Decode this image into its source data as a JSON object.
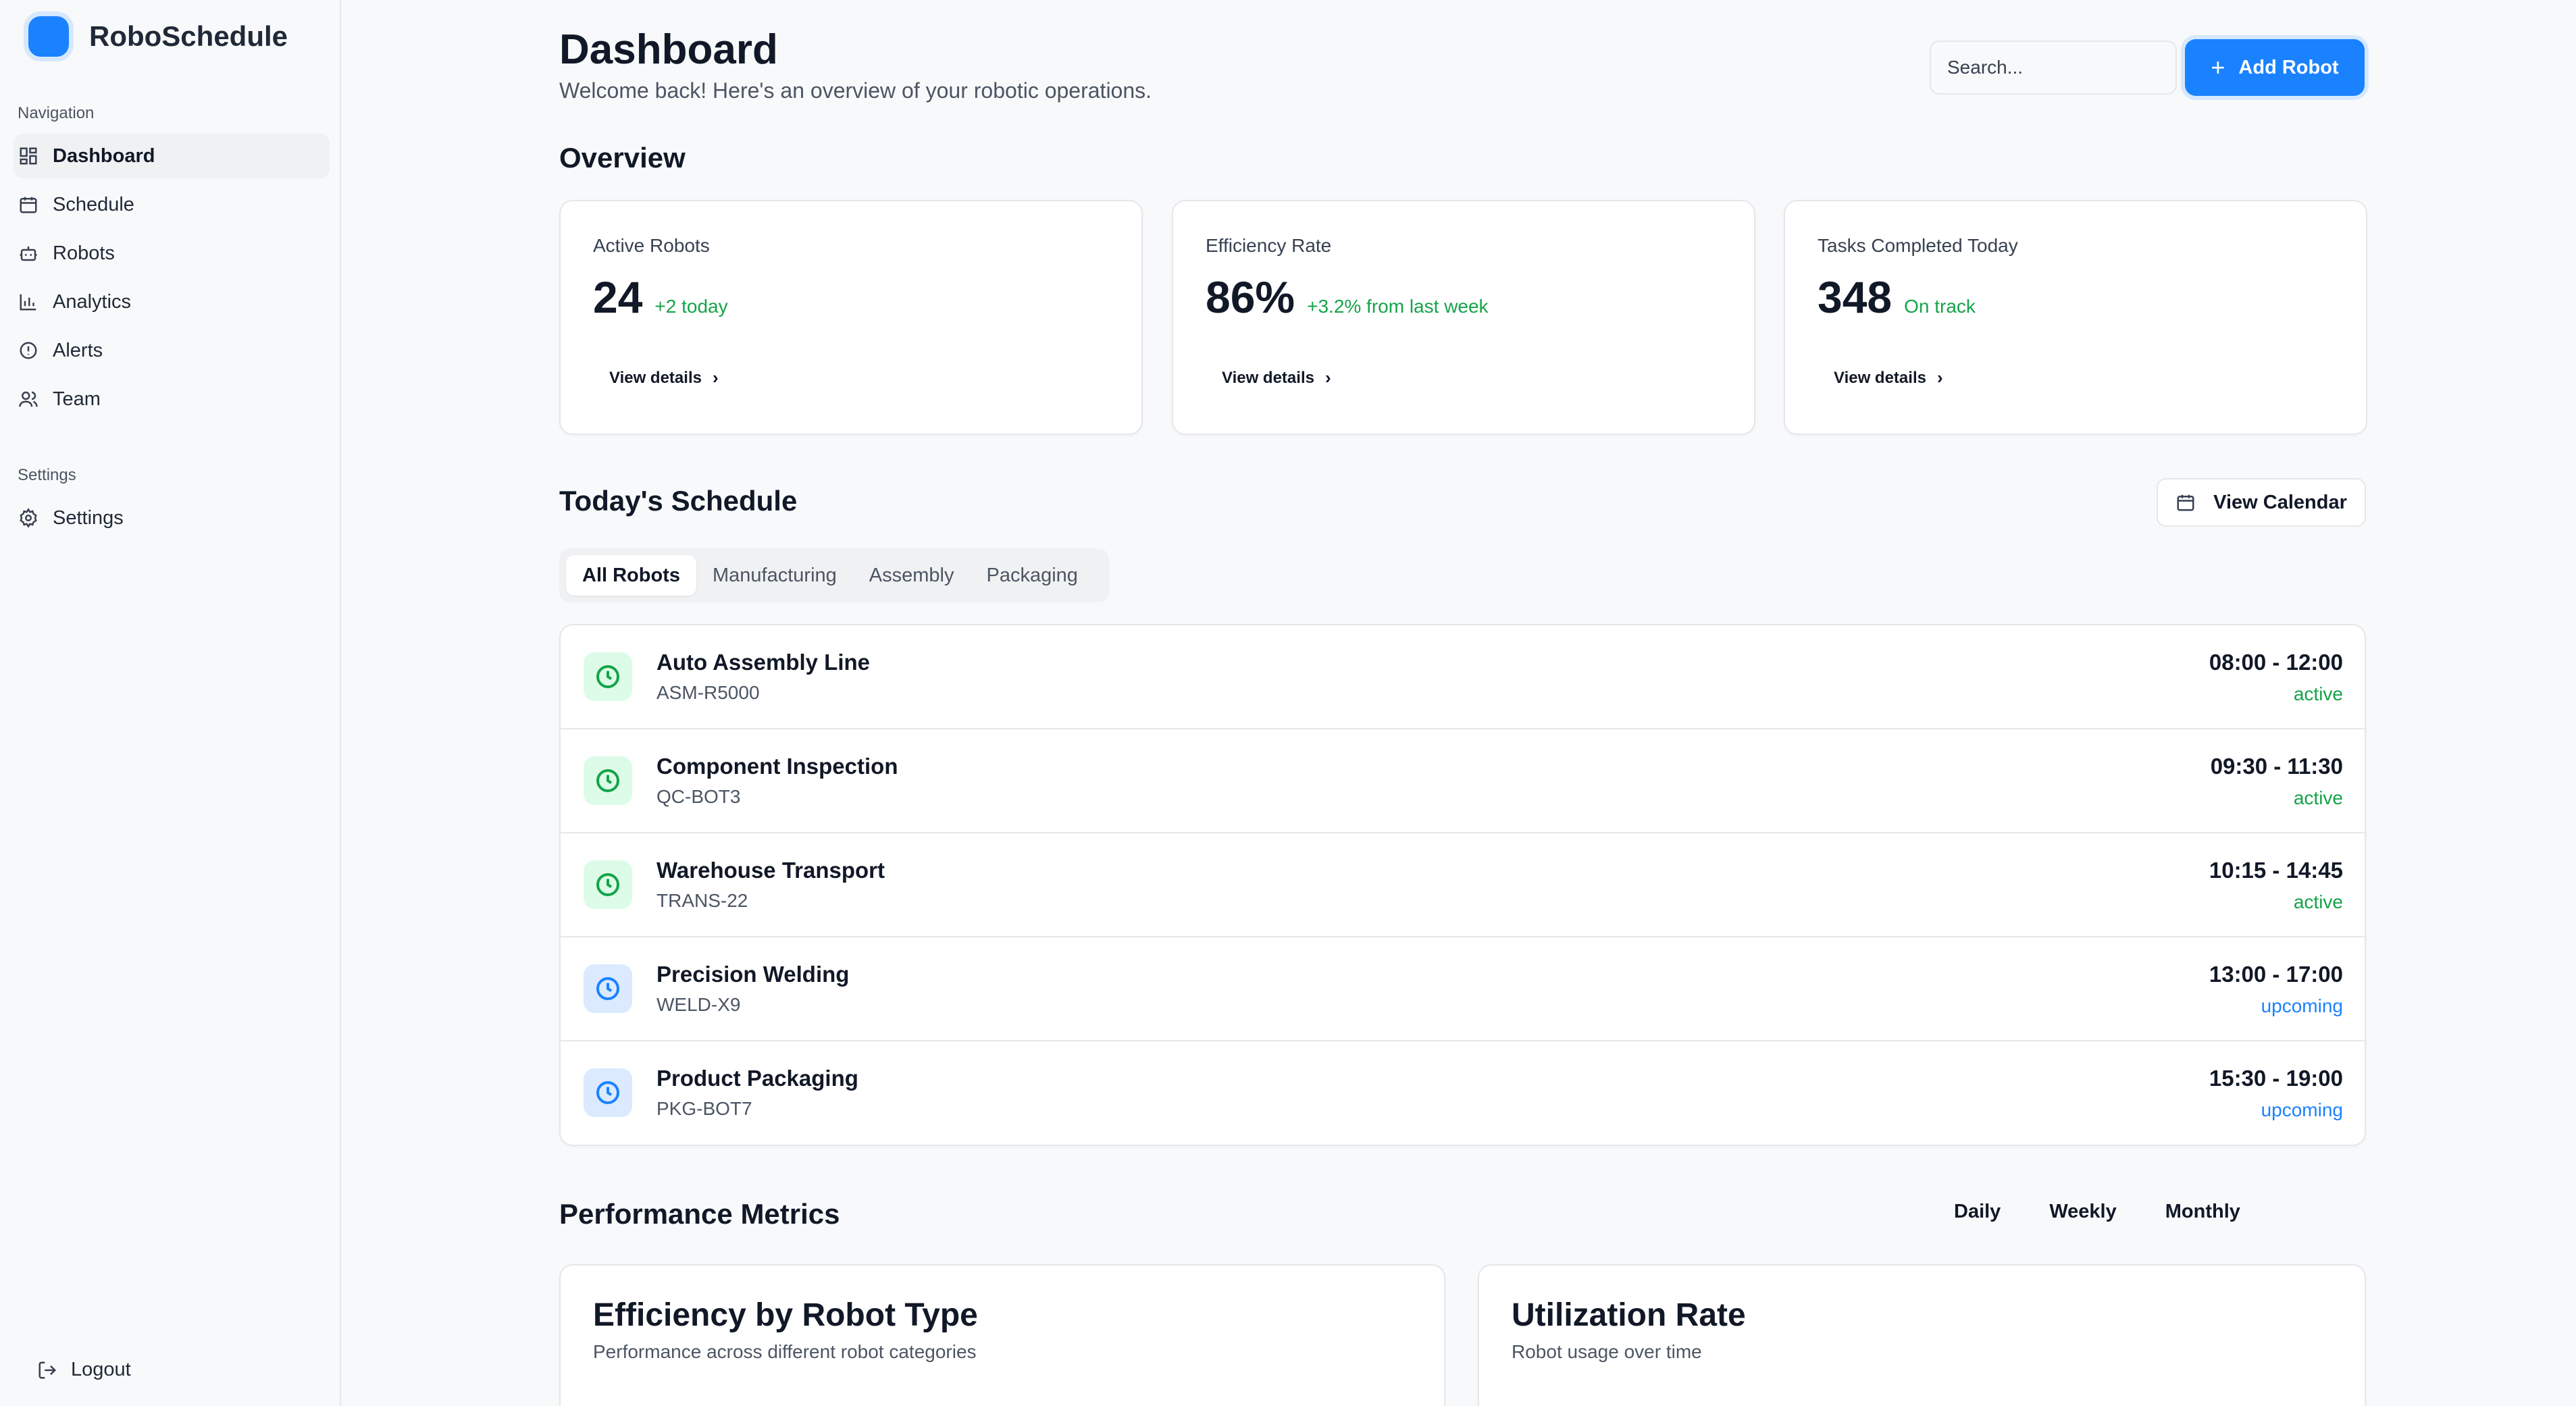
{
  "app": {
    "name": "RoboSchedule"
  },
  "sidebar": {
    "navigation_label": "Navigation",
    "items": [
      {
        "label": "Dashboard",
        "icon": "dashboard-grid-icon",
        "active": true
      },
      {
        "label": "Schedule",
        "icon": "calendar-icon"
      },
      {
        "label": "Robots",
        "icon": "robot-icon"
      },
      {
        "label": "Analytics",
        "icon": "bar-chart-icon"
      },
      {
        "label": "Alerts",
        "icon": "alert-circle-icon"
      },
      {
        "label": "Team",
        "icon": "users-icon"
      }
    ],
    "settings_label": "Settings",
    "settings_item": {
      "label": "Settings",
      "icon": "gear-icon"
    },
    "logout_label": "Logout"
  },
  "header": {
    "title": "Dashboard",
    "subtitle": "Welcome back! Here's an overview of your robotic operations.",
    "search_placeholder": "Search...",
    "add_button": "Add Robot"
  },
  "overview": {
    "title": "Overview",
    "cards": [
      {
        "label": "Active Robots",
        "value": "24",
        "delta": "+2 today",
        "link": "View details"
      },
      {
        "label": "Efficiency Rate",
        "value": "86%",
        "delta": "+3.2% from last week",
        "link": "View details"
      },
      {
        "label": "Tasks Completed Today",
        "value": "348",
        "delta": "On track",
        "link": "View details"
      }
    ]
  },
  "schedule": {
    "title": "Today's Schedule",
    "calendar_button": "View Calendar",
    "tabs": [
      "All Robots",
      "Manufacturing",
      "Assembly",
      "Packaging"
    ],
    "rows": [
      {
        "name": "Auto Assembly Line",
        "code": "ASM-R5000",
        "time": "08:00 - 12:00",
        "status": "active"
      },
      {
        "name": "Component Inspection",
        "code": "QC-BOT3",
        "time": "09:30 - 11:30",
        "status": "active"
      },
      {
        "name": "Warehouse Transport",
        "code": "TRANS-22",
        "time": "10:15 - 14:45",
        "status": "active"
      },
      {
        "name": "Precision Welding",
        "code": "WELD-X9",
        "time": "13:00 - 17:00",
        "status": "upcoming"
      },
      {
        "name": "Product Packaging",
        "code": "PKG-BOT7",
        "time": "15:30 - 19:00",
        "status": "upcoming"
      }
    ]
  },
  "performance": {
    "title": "Performance Metrics",
    "periods": [
      "Daily",
      "Weekly",
      "Monthly"
    ],
    "cards": [
      {
        "title": "Efficiency by Robot Type",
        "subtitle": "Performance across different robot categories"
      },
      {
        "title": "Utilization Rate",
        "subtitle": "Robot usage over time"
      }
    ]
  },
  "colors": {
    "accent": "#1a82ff",
    "success": "#16a34a",
    "info": "#1a82ff",
    "active_icon_bg": "#dcfce7",
    "upcoming_icon_bg": "#dbeafe"
  }
}
